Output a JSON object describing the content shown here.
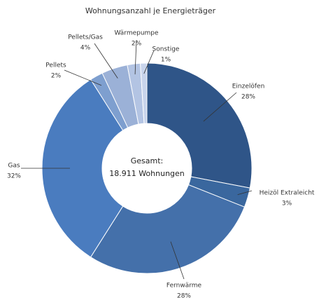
{
  "chart_data": {
    "type": "donut",
    "title": "Wohnungsanzahl je Energieträger",
    "center_title": "Gesamt:",
    "center_text": "18.911 Wohnungen",
    "categories": [
      "Einzelöfen",
      "Heizöl Extraleicht",
      "Fernwärme",
      "Gas",
      "Pellets",
      "Pellets/Gas",
      "Wärmepumpe",
      "Sonstige"
    ],
    "values": [
      28,
      3,
      28,
      32,
      2,
      4,
      2,
      1
    ],
    "value_labels": [
      "28%",
      "3%",
      "28%",
      "32%",
      "2%",
      "4%",
      "2%",
      "1%"
    ],
    "colors": [
      "#2f5588",
      "#3a679e",
      "#4470aa",
      "#4a7cbf",
      "#7e9fcf",
      "#9bb1d7",
      "#b3c4e3",
      "#c8d4eb"
    ]
  }
}
